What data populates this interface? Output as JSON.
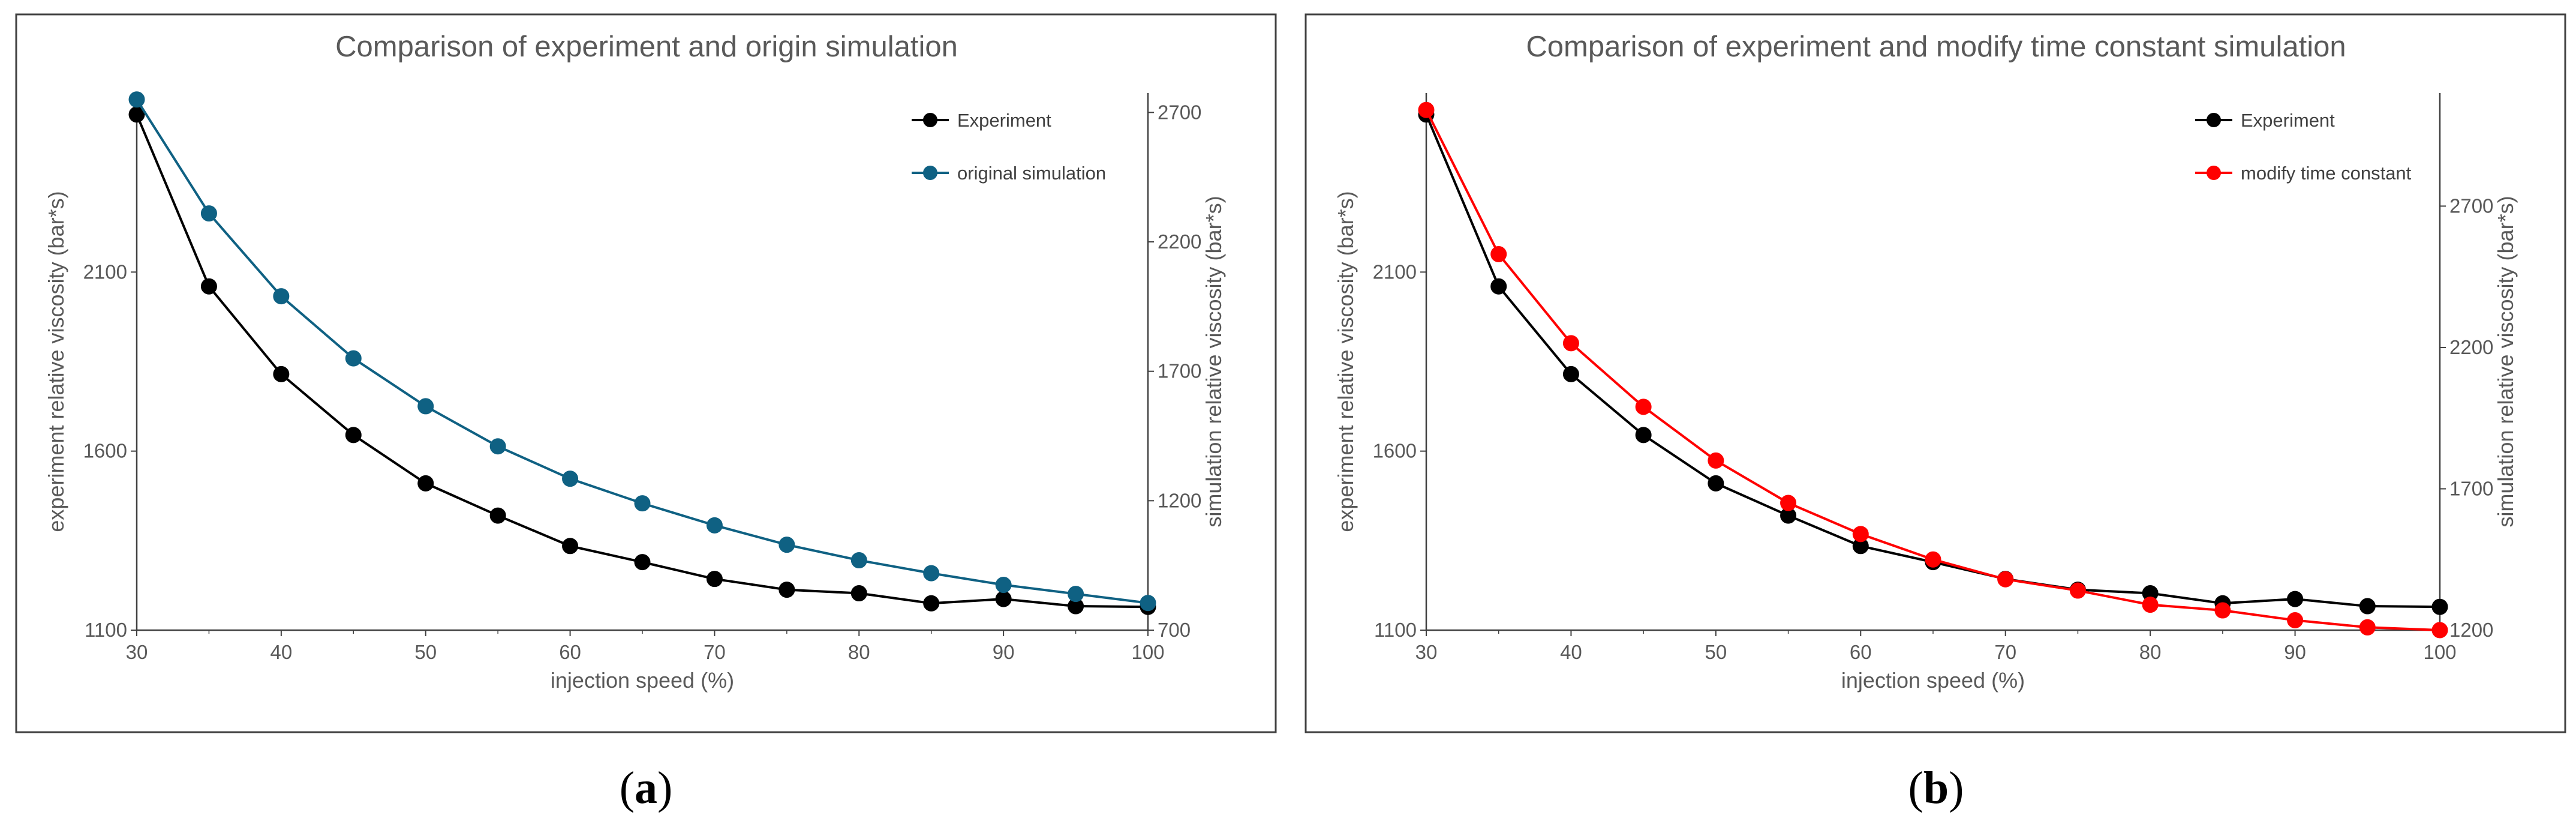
{
  "colors": {
    "experiment": "#000000",
    "original": "#0f6183",
    "modified": "#ff0000",
    "text": "#595959",
    "frame": "#404040"
  },
  "chart_data": [
    {
      "type": "line",
      "title": "Comparison of experiment and origin simulation",
      "caption_letter": "a",
      "xlabel": "injection speed (%)",
      "ylabel_left": "experiment relative viscosity (bar*s)",
      "ylabel_right": "simulation relative viscosity (bar*s)",
      "x": [
        30,
        35,
        40,
        45,
        50,
        55,
        60,
        65,
        70,
        75,
        80,
        85,
        90,
        95,
        100
      ],
      "xticks": [
        30,
        40,
        50,
        60,
        70,
        80,
        90,
        100
      ],
      "xlim": [
        30,
        100
      ],
      "ylim_left": [
        1100,
        2600
      ],
      "yticks_left": [
        1100,
        1600,
        2100
      ],
      "ylim_right": [
        700,
        2775
      ],
      "yticks_right": [
        700,
        1200,
        1700,
        2200,
        2700
      ],
      "series": [
        {
          "name": "Experiment",
          "axis": "left",
          "color": "#000000",
          "values": [
            2540,
            2060,
            1815,
            1645,
            1510,
            1420,
            1335,
            1290,
            1243,
            1213,
            1203,
            1175,
            1187,
            1167,
            1165
          ]
        },
        {
          "name": "original simulation",
          "axis": "right",
          "color": "#0f6183",
          "values": [
            2750,
            2310,
            1990,
            1750,
            1565,
            1410,
            1285,
            1190,
            1105,
            1030,
            970,
            920,
            875,
            840,
            805
          ]
        }
      ]
    },
    {
      "type": "line",
      "title": "Comparison of experiment and modify time constant simulation",
      "caption_letter": "b",
      "xlabel": "injection speed (%)",
      "ylabel_left": "experiment relative viscosity (bar*s)",
      "ylabel_right": "simulation relative viscosity (bar*s)",
      "x": [
        30,
        35,
        40,
        45,
        50,
        55,
        60,
        65,
        70,
        75,
        80,
        85,
        90,
        95,
        100
      ],
      "xticks": [
        30,
        40,
        50,
        60,
        70,
        80,
        90,
        100
      ],
      "xlim": [
        30,
        100
      ],
      "ylim_left": [
        1100,
        2600
      ],
      "yticks_left": [
        1100,
        1600,
        2100
      ],
      "ylim_right": [
        1200,
        3100
      ],
      "yticks_right": [
        1200,
        1700,
        2200,
        2700
      ],
      "series": [
        {
          "name": "Experiment",
          "axis": "left",
          "color": "#000000",
          "values": [
            2540,
            2060,
            1815,
            1645,
            1510,
            1420,
            1335,
            1290,
            1243,
            1213,
            1203,
            1175,
            1187,
            1167,
            1165
          ]
        },
        {
          "name": "modify time constant",
          "axis": "right",
          "color": "#ff0000",
          "values": [
            3040,
            2530,
            2215,
            1990,
            1800,
            1650,
            1540,
            1450,
            1380,
            1340,
            1290,
            1270,
            1235,
            1210,
            1200
          ]
        }
      ]
    }
  ]
}
